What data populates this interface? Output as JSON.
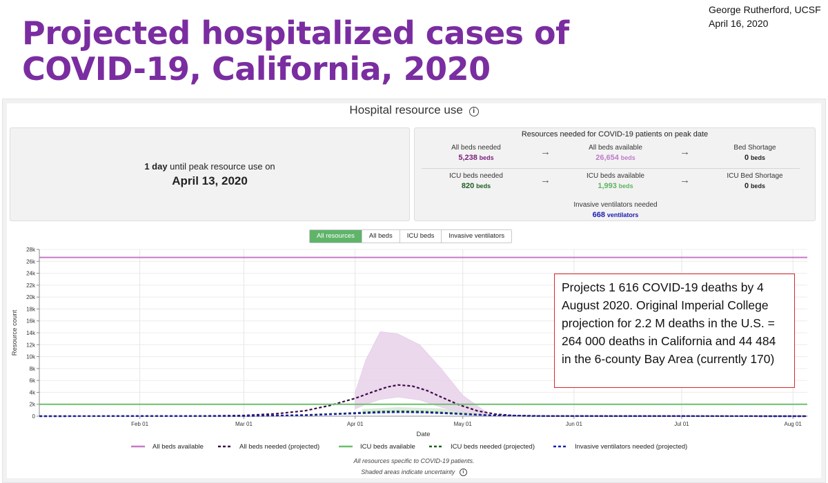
{
  "slide": {
    "title": "Projected hospitalized cases of COVID-19, California, 2020",
    "credit_line1": "George Rutherford, UCSF",
    "credit_line2": "April 16, 2020"
  },
  "panel": {
    "title": "Hospital resource use",
    "info_icon": "info-icon"
  },
  "peak": {
    "days_value": "1 day",
    "days_suffix": " until peak resource use on",
    "date": "April 13, 2020"
  },
  "resources": {
    "title": "Resources needed for COVID-19 patients on peak date",
    "all_beds_needed_label": "All beds needed",
    "all_beds_needed_value": "5,238",
    "all_beds_available_label": "All beds available",
    "all_beds_available_value": "26,654",
    "bed_shortage_label": "Bed Shortage",
    "bed_shortage_value": "0",
    "icu_needed_label": "ICU beds needed",
    "icu_needed_value": "820",
    "icu_available_label": "ICU beds available",
    "icu_available_value": "1,993",
    "icu_shortage_label": "ICU Bed Shortage",
    "icu_shortage_value": "0",
    "vent_label": "Invasive ventilators needed",
    "vent_value": "668",
    "beds_unit": "beds",
    "vent_unit": "ventilators",
    "arrow": "→"
  },
  "tabs": [
    "All resources",
    "All beds",
    "ICU beds",
    "Invasive ventilators"
  ],
  "annotation": "Projects 1 616 COVID-19 deaths by 4 August 2020. Original Imperial College projection for 2.2 M deaths in the U.S. = 264 000 deaths in California and 44 484 in the 6-county Bay Area (currently 170)",
  "footnote1": "All resources specific to COVID-19 patients.",
  "footnote2": "Shaded areas indicate uncertainty",
  "colors": {
    "title_purple": "#7a2da0",
    "beds_available": "#c878c8",
    "beds_needed": "#3b0a45",
    "icu_available": "#6bbf6b",
    "icu_needed": "#1d5e20",
    "ventilators": "#1b1bb0",
    "uncertainty_fill": "#e9d4ec",
    "annotation_border": "#d9252a"
  },
  "chart_data": {
    "type": "line",
    "xlabel": "Date",
    "ylabel": "Resource count",
    "xlim": [
      "2020-01-04",
      "2020-08-05"
    ],
    "ylim": [
      0,
      28000
    ],
    "x_ticks": [
      "Feb 01",
      "Mar 01",
      "Apr 01",
      "May 01",
      "Jun 01",
      "Jul 01",
      "Aug 01"
    ],
    "y_ticks": [
      "0",
      "2k",
      "4k",
      "6k",
      "8k",
      "10k",
      "12k",
      "14k",
      "16k",
      "18k",
      "20k",
      "22k",
      "24k",
      "26k",
      "28k"
    ],
    "legend_position": "bottom",
    "series": [
      {
        "name": "All beds available",
        "style": "solid",
        "x": [
          "2020-01-04",
          "2020-08-05"
        ],
        "y": [
          26654,
          26654
        ]
      },
      {
        "name": "All beds needed (projected)",
        "style": "dashed",
        "x": [
          "2020-01-04",
          "2020-02-15",
          "2020-03-01",
          "2020-03-10",
          "2020-03-18",
          "2020-03-25",
          "2020-04-01",
          "2020-04-06",
          "2020-04-10",
          "2020-04-13",
          "2020-04-17",
          "2020-04-21",
          "2020-04-25",
          "2020-04-30",
          "2020-05-05",
          "2020-05-10",
          "2020-05-15",
          "2020-05-25",
          "2020-08-05"
        ],
        "y": [
          0,
          20,
          120,
          400,
          900,
          1800,
          3000,
          4100,
          4900,
          5238,
          5050,
          4300,
          3200,
          1900,
          900,
          350,
          120,
          20,
          0
        ]
      },
      {
        "name": "ICU beds available",
        "style": "solid",
        "x": [
          "2020-01-04",
          "2020-08-05"
        ],
        "y": [
          1993,
          1993
        ]
      },
      {
        "name": "ICU beds needed (projected)",
        "style": "dashed",
        "x": [
          "2020-01-04",
          "2020-03-01",
          "2020-03-18",
          "2020-04-01",
          "2020-04-08",
          "2020-04-13",
          "2020-04-20",
          "2020-04-28",
          "2020-05-08",
          "2020-05-20",
          "2020-08-05"
        ],
        "y": [
          0,
          30,
          200,
          560,
          760,
          820,
          760,
          520,
          180,
          30,
          0
        ]
      },
      {
        "name": "Invasive ventilators needed (projected)",
        "style": "dashed",
        "x": [
          "2020-01-04",
          "2020-03-01",
          "2020-03-18",
          "2020-04-01",
          "2020-04-08",
          "2020-04-13",
          "2020-04-20",
          "2020-04-28",
          "2020-05-08",
          "2020-05-20",
          "2020-08-05"
        ],
        "y": [
          0,
          20,
          150,
          450,
          620,
          668,
          620,
          420,
          150,
          25,
          0
        ]
      }
    ],
    "uncertainty_band": {
      "series": "All beds needed (projected)",
      "x": [
        "2020-04-01",
        "2020-04-04",
        "2020-04-08",
        "2020-04-13",
        "2020-04-19",
        "2020-04-25",
        "2020-05-01",
        "2020-05-08"
      ],
      "upper": [
        4000,
        9500,
        14200,
        13800,
        12000,
        8000,
        3500,
        500
      ],
      "lower": [
        1200,
        2000,
        2800,
        3200,
        2700,
        1500,
        500,
        0
      ]
    }
  }
}
